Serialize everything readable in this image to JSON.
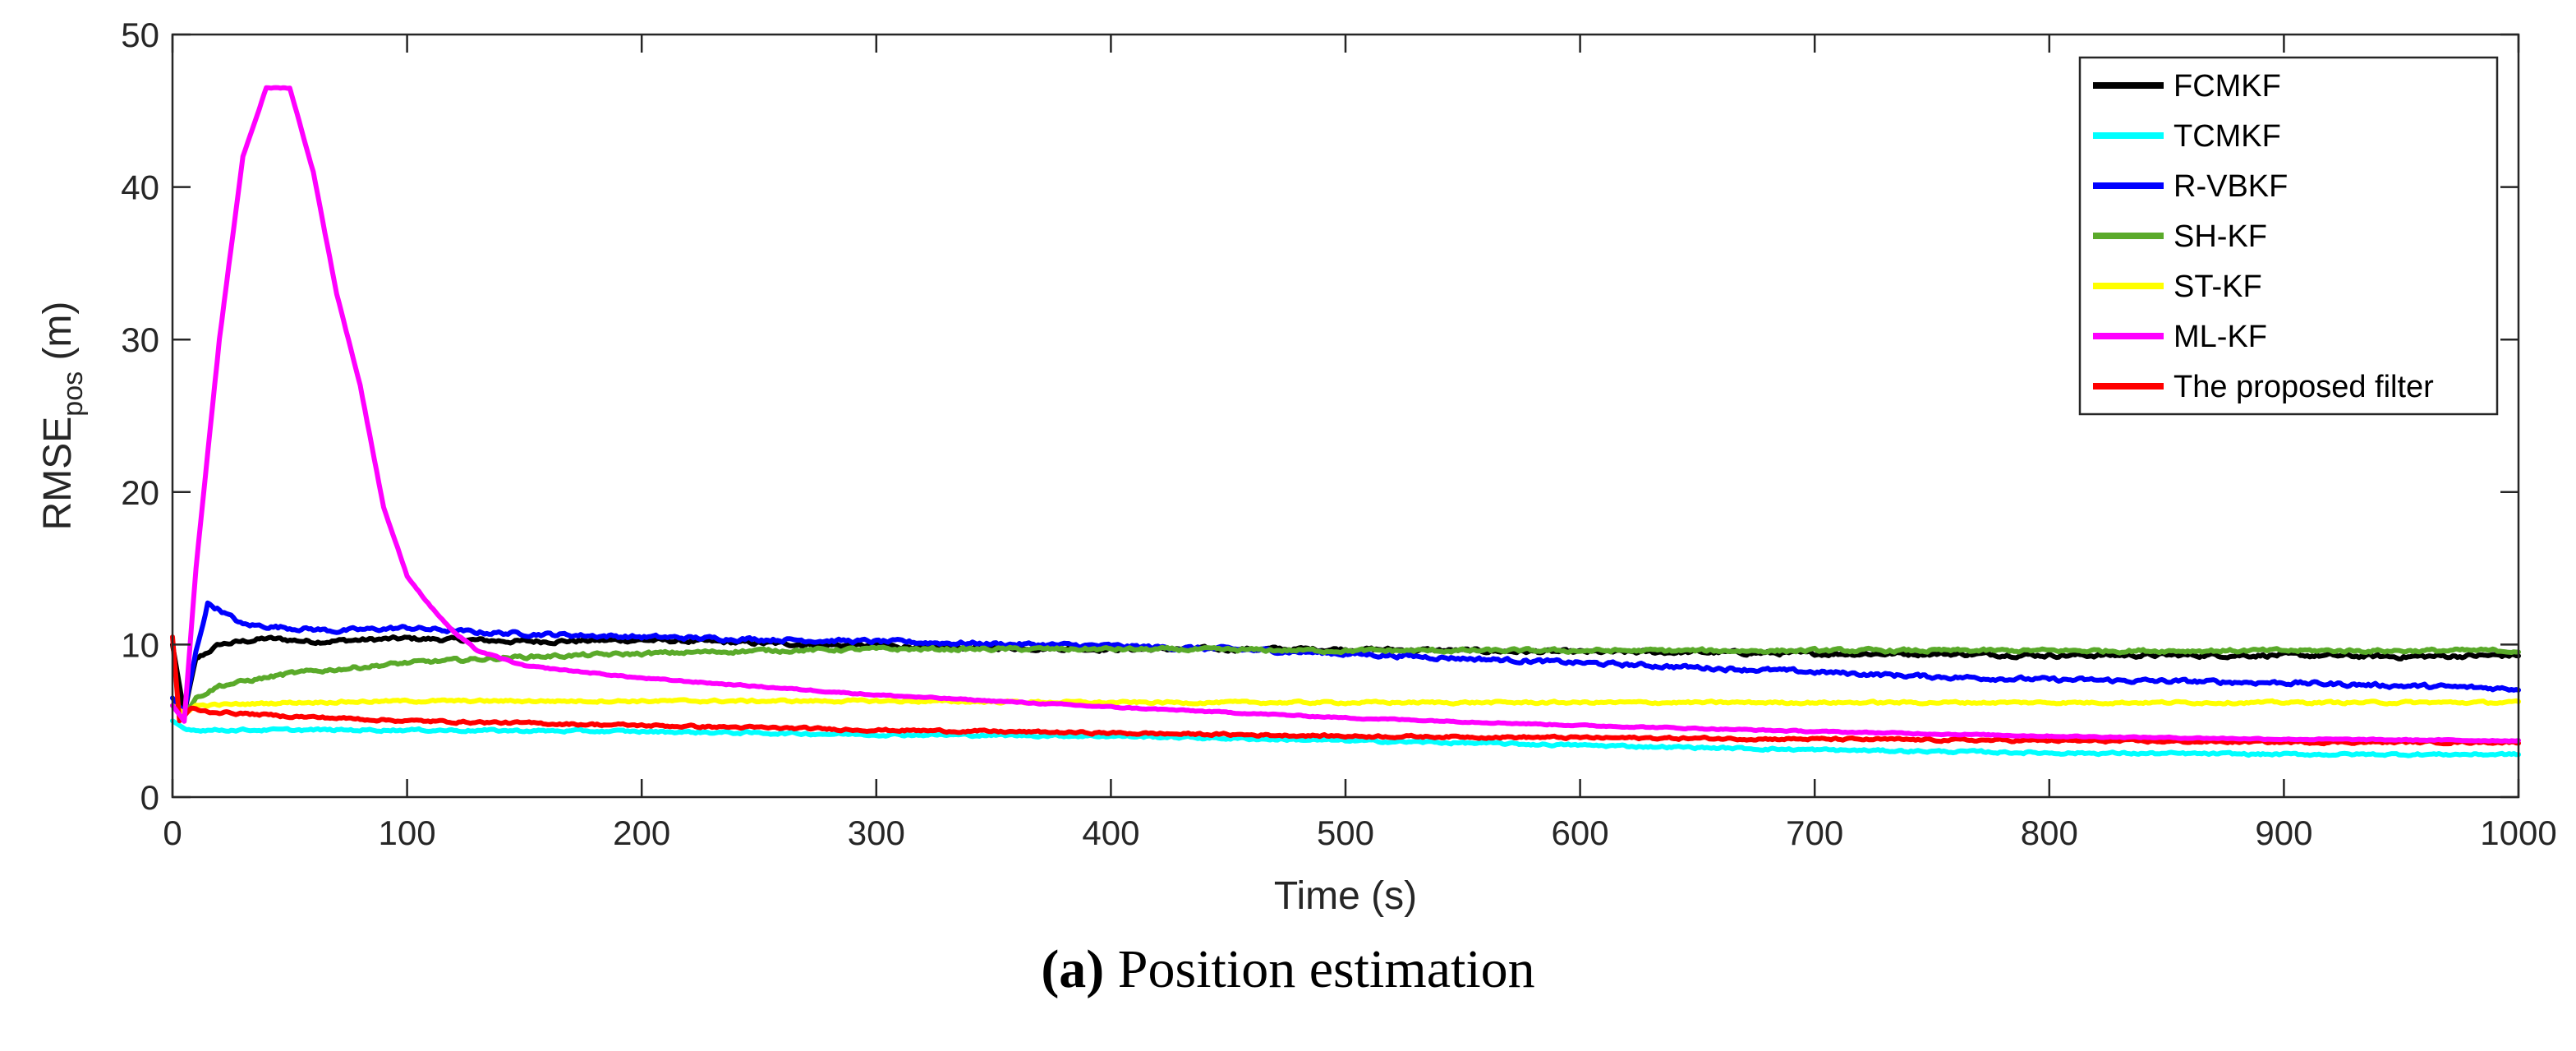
{
  "chart_data": {
    "type": "line",
    "xlabel": "Time (s)",
    "ylabel_main": "RMSE",
    "ylabel_sub": "pos",
    "ylabel_unit": " (m)",
    "xlim": [
      0,
      1000
    ],
    "ylim": [
      0,
      50
    ],
    "xticks": [
      0,
      100,
      200,
      300,
      400,
      500,
      600,
      700,
      800,
      900,
      1000
    ],
    "yticks": [
      0,
      10,
      20,
      30,
      40,
      50
    ],
    "legend_position": "top-right",
    "grid": false,
    "series": [
      {
        "name": "FCMKF",
        "color": "#000000",
        "x": [
          0,
          5,
          10,
          20,
          40,
          60,
          80,
          100,
          150,
          200,
          250,
          300,
          350,
          400,
          450,
          500,
          550,
          600,
          650,
          700,
          750,
          800,
          850,
          900,
          950,
          1000
        ],
        "y": [
          10,
          5.5,
          9.0,
          10.0,
          10.4,
          10.2,
          10.3,
          10.4,
          10.2,
          10.3,
          10.1,
          9.9,
          9.8,
          9.7,
          9.7,
          9.7,
          9.6,
          9.5,
          9.5,
          9.4,
          9.4,
          9.3,
          9.3,
          9.3,
          9.2,
          9.3
        ],
        "noise": 0.25
      },
      {
        "name": "TCMKF",
        "color": "#00FFFF",
        "x": [
          0,
          5,
          10,
          50,
          100,
          200,
          300,
          400,
          500,
          600,
          700,
          800,
          900,
          1000
        ],
        "y": [
          5.0,
          4.5,
          4.4,
          4.4,
          4.4,
          4.3,
          4.1,
          4.0,
          3.7,
          3.4,
          3.1,
          2.9,
          2.8,
          2.8
        ],
        "noise": 0.15
      },
      {
        "name": "R-VBKF",
        "color": "#0000FF",
        "x": [
          0,
          5,
          10,
          15,
          20,
          30,
          50,
          70,
          100,
          130,
          200,
          300,
          400,
          450,
          500,
          550,
          600,
          650,
          700,
          750,
          800,
          850,
          900,
          950,
          1000
        ],
        "y": [
          6.5,
          5.5,
          9.5,
          12.7,
          12.3,
          11.3,
          11.1,
          10.9,
          11.1,
          10.8,
          10.5,
          10.2,
          9.9,
          9.7,
          9.4,
          9.1,
          8.8,
          8.5,
          8.2,
          7.9,
          7.7,
          7.6,
          7.5,
          7.3,
          7.1
        ],
        "noise": 0.25
      },
      {
        "name": "SH-KF",
        "color": "#5AAA2A",
        "x": [
          0,
          5,
          10,
          20,
          50,
          100,
          150,
          200,
          250,
          300,
          400,
          500,
          600,
          700,
          800,
          900,
          1000
        ],
        "y": [
          6.0,
          5.5,
          6.5,
          7.3,
          8.1,
          8.8,
          9.2,
          9.4,
          9.6,
          9.7,
          9.7,
          9.6,
          9.6,
          9.6,
          9.6,
          9.6,
          9.6
        ],
        "noise": 0.22
      },
      {
        "name": "ST-KF",
        "color": "#FFFF00",
        "x": [
          0,
          5,
          10,
          50,
          100,
          200,
          300,
          400,
          500,
          600,
          700,
          800,
          900,
          1000
        ],
        "y": [
          6.0,
          5.5,
          6.0,
          6.2,
          6.3,
          6.3,
          6.3,
          6.2,
          6.2,
          6.2,
          6.2,
          6.2,
          6.2,
          6.2
        ],
        "noise": 0.15
      },
      {
        "name": "ML-KF",
        "color": "#FF00FF",
        "x": [
          0,
          5,
          10,
          20,
          30,
          40,
          50,
          60,
          70,
          80,
          90,
          100,
          110,
          120,
          130,
          150,
          200,
          300,
          400,
          500,
          600,
          700,
          800,
          900,
          1000
        ],
        "y": [
          6.0,
          5.0,
          15.0,
          30.0,
          42.0,
          46.5,
          46.5,
          41.0,
          33.0,
          27.0,
          19.0,
          14.5,
          12.5,
          10.8,
          9.6,
          8.6,
          7.8,
          6.7,
          5.9,
          5.2,
          4.7,
          4.3,
          4.0,
          3.8,
          3.7
        ],
        "noise": 0.08
      },
      {
        "name": "The proposed filter",
        "color": "#FF0000",
        "x": [
          0,
          3,
          8,
          15,
          50,
          100,
          200,
          300,
          400,
          500,
          600,
          700,
          800,
          900,
          1000
        ],
        "y": [
          10.5,
          5.0,
          5.8,
          5.6,
          5.3,
          5.0,
          4.7,
          4.4,
          4.2,
          4.0,
          3.9,
          3.8,
          3.7,
          3.6,
          3.6
        ],
        "noise": 0.15
      }
    ]
  },
  "caption": {
    "label": "(a)",
    "text": " Position estimation"
  }
}
